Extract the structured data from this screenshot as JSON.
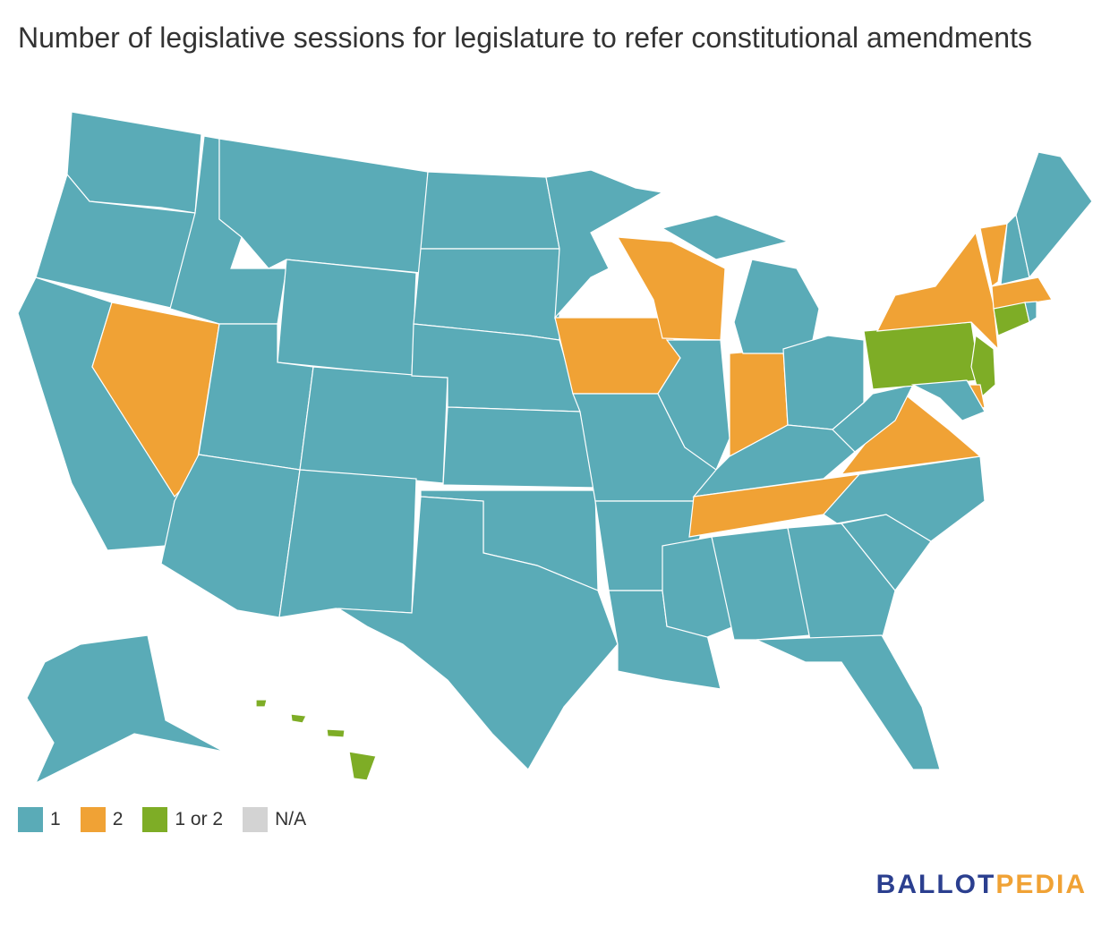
{
  "title": "Number of legislative sessions for legislature to refer constitutional amendments",
  "legend": [
    {
      "label": "1",
      "color": "#5aabb7"
    },
    {
      "label": "2",
      "color": "#f0a235"
    },
    {
      "label": "1 or 2",
      "color": "#7ead26"
    },
    {
      "label": "N/A",
      "color": "#d3d3d3"
    }
  ],
  "regions": [
    0,
    0,
    0,
    1,
    0,
    0,
    0,
    0,
    0,
    0,
    0,
    0,
    0,
    0,
    0,
    0,
    0,
    0,
    1,
    1,
    0,
    0,
    0,
    0,
    1,
    0,
    0,
    0,
    0,
    1,
    0,
    0,
    0,
    0,
    0,
    0,
    1,
    0,
    2,
    1,
    1,
    0,
    0,
    1,
    2,
    0,
    2,
    1,
    0,
    0,
    2,
    2,
    2,
    2
  ],
  "logo": {
    "first": "BALLOT",
    "second": "PEDIA"
  }
}
